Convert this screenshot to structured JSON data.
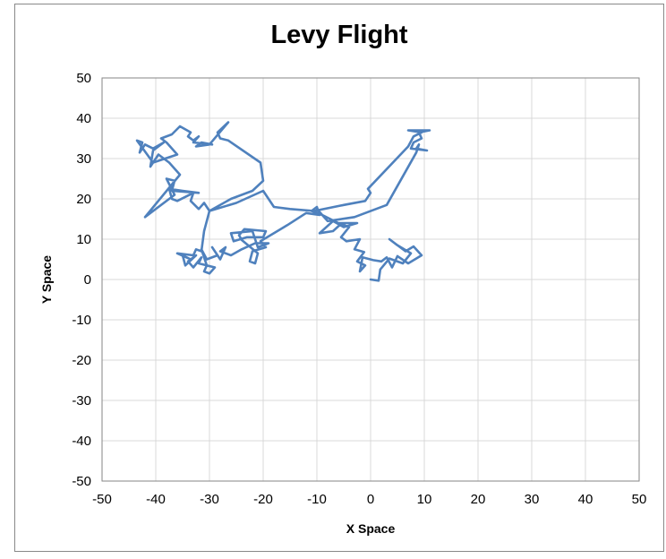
{
  "chart_data": {
    "type": "line",
    "title": "Levy Flight",
    "xlabel": "X Space",
    "ylabel": "Y Space",
    "xlim": [
      -50,
      50
    ],
    "ylim": [
      -50,
      50
    ],
    "xticks": [
      -50,
      -40,
      -30,
      -20,
      -10,
      0,
      10,
      20,
      30,
      40,
      50
    ],
    "yticks": [
      50,
      40,
      30,
      20,
      10,
      0,
      -10,
      -20,
      -30,
      -40,
      -50
    ],
    "grid": true,
    "legend": "none",
    "colors": {
      "series": "#4f81bd",
      "grid": "#d9d9d9",
      "axis": "#868686"
    },
    "series": [
      {
        "points": [
          [
            0,
            0
          ],
          [
            1.5,
            -0.3
          ],
          [
            1.8,
            2.5
          ],
          [
            3.5,
            5.2
          ],
          [
            6,
            4
          ],
          [
            7.5,
            6.5
          ],
          [
            5,
            8.5
          ],
          [
            3.5,
            10
          ],
          [
            6.5,
            7
          ],
          [
            8,
            8.2
          ],
          [
            9.5,
            6
          ],
          [
            7,
            4
          ],
          [
            5,
            5.8
          ],
          [
            4,
            3
          ],
          [
            3,
            5.5
          ],
          [
            2,
            4.5
          ],
          [
            0.5,
            4.8
          ],
          [
            -1.5,
            5.5
          ],
          [
            -2,
            2
          ],
          [
            -1,
            3.5
          ],
          [
            -2.5,
            4.5
          ],
          [
            -1.2,
            6.8
          ],
          [
            -3,
            7.5
          ],
          [
            -2,
            10
          ],
          [
            -4.5,
            9.5
          ],
          [
            -5.5,
            10.5
          ],
          [
            -4,
            13
          ],
          [
            -5.5,
            13.8
          ],
          [
            -7,
            12
          ],
          [
            -9.5,
            11.5
          ],
          [
            -7,
            14.5
          ],
          [
            -5,
            13
          ],
          [
            -2.5,
            14
          ],
          [
            -6,
            14
          ],
          [
            -9,
            16
          ],
          [
            -11,
            17
          ],
          [
            -10,
            18
          ],
          [
            -9.5,
            16
          ],
          [
            -12,
            16.5
          ],
          [
            -15.5,
            13.5
          ],
          [
            -20.5,
            9.5
          ],
          [
            -19.5,
            8
          ],
          [
            -22,
            7
          ],
          [
            -22.5,
            4.5
          ],
          [
            -21.5,
            4
          ],
          [
            -21,
            6.5
          ],
          [
            -24,
            9.8
          ],
          [
            -24.5,
            11
          ],
          [
            -23.5,
            12.5
          ],
          [
            -19.5,
            12
          ],
          [
            -20,
            10.5
          ],
          [
            -23,
            10.5
          ],
          [
            -25.5,
            9.5
          ],
          [
            -26,
            11.5
          ],
          [
            -22,
            12
          ],
          [
            -21,
            8
          ],
          [
            -19,
            9
          ],
          [
            -21.5,
            9
          ],
          [
            -24,
            7.5
          ],
          [
            -26,
            6
          ],
          [
            -28,
            7
          ],
          [
            -27,
            8
          ],
          [
            -28,
            5
          ],
          [
            -29.5,
            8
          ],
          [
            -28.5,
            6
          ],
          [
            -30.5,
            5
          ],
          [
            -31.5,
            7.5
          ],
          [
            -30.5,
            3.5
          ],
          [
            -29,
            3
          ],
          [
            -30,
            1.5
          ],
          [
            -31,
            2
          ],
          [
            -30.5,
            3.5
          ],
          [
            -32,
            4
          ],
          [
            -31.5,
            5.5
          ],
          [
            -33,
            3
          ],
          [
            -34,
            4.5
          ],
          [
            -32.5,
            6
          ],
          [
            -34.5,
            3.5
          ],
          [
            -35,
            6
          ],
          [
            -33.5,
            5
          ],
          [
            -36,
            6.5
          ],
          [
            -33,
            6
          ],
          [
            -32.5,
            7.5
          ],
          [
            -31.5,
            7
          ],
          [
            -31,
            12
          ],
          [
            -30,
            17
          ],
          [
            -31,
            19
          ],
          [
            -32,
            17.5
          ],
          [
            -33.5,
            19.5
          ],
          [
            -33,
            21.5
          ],
          [
            -36,
            19.5
          ],
          [
            -37,
            20
          ],
          [
            -37.5,
            22.5
          ],
          [
            -35,
            22
          ],
          [
            -32,
            21.5
          ],
          [
            -37,
            22
          ],
          [
            -36.5,
            24.5
          ],
          [
            -38,
            25
          ],
          [
            -36.5,
            21
          ],
          [
            -42,
            15.5
          ],
          [
            -35.5,
            26
          ],
          [
            -37.5,
            29
          ],
          [
            -39.5,
            31
          ],
          [
            -41,
            28
          ],
          [
            -40.5,
            32
          ],
          [
            -38.5,
            34
          ],
          [
            -40.5,
            32.5
          ],
          [
            -42,
            33.5
          ],
          [
            -43,
            31.5
          ],
          [
            -42.5,
            34
          ],
          [
            -43.5,
            34.5
          ],
          [
            -40.5,
            29
          ],
          [
            -36,
            31
          ],
          [
            -38,
            34
          ],
          [
            -39,
            35
          ],
          [
            -37,
            36
          ],
          [
            -35.5,
            38
          ],
          [
            -33.5,
            36.5
          ],
          [
            -34,
            35.5
          ],
          [
            -33,
            34.5
          ],
          [
            -32,
            35.5
          ],
          [
            -33,
            34
          ],
          [
            -29.5,
            33.5
          ],
          [
            -31.5,
            34
          ],
          [
            -32.5,
            33
          ],
          [
            -30,
            33.5
          ],
          [
            -26.5,
            39
          ],
          [
            -28.5,
            36.5
          ],
          [
            -28,
            35
          ],
          [
            -26.5,
            34.5
          ],
          [
            -20.5,
            29
          ],
          [
            -20,
            24.5
          ],
          [
            -22,
            22
          ],
          [
            -26,
            20
          ],
          [
            -30,
            17
          ],
          [
            -25,
            19
          ],
          [
            -20,
            22
          ],
          [
            -18,
            18
          ],
          [
            -15,
            17.5
          ],
          [
            -10.5,
            17
          ],
          [
            -5,
            18.5
          ],
          [
            -1,
            19.5
          ],
          [
            0,
            21.5
          ],
          [
            -0.5,
            22.5
          ],
          [
            7,
            33
          ],
          [
            8,
            35.5
          ],
          [
            9.5,
            36.5
          ],
          [
            7,
            37
          ],
          [
            11,
            37
          ],
          [
            9,
            36.5
          ],
          [
            9.5,
            35
          ],
          [
            8,
            34
          ],
          [
            7.5,
            32.5
          ],
          [
            10.5,
            32
          ],
          [
            8.5,
            32.5
          ],
          [
            9,
            33.5
          ],
          [
            8.5,
            31.5
          ],
          [
            3,
            18.5
          ],
          [
            -3,
            15.5
          ],
          [
            -8,
            14.5
          ],
          [
            -10,
            17.5
          ]
        ]
      }
    ]
  }
}
